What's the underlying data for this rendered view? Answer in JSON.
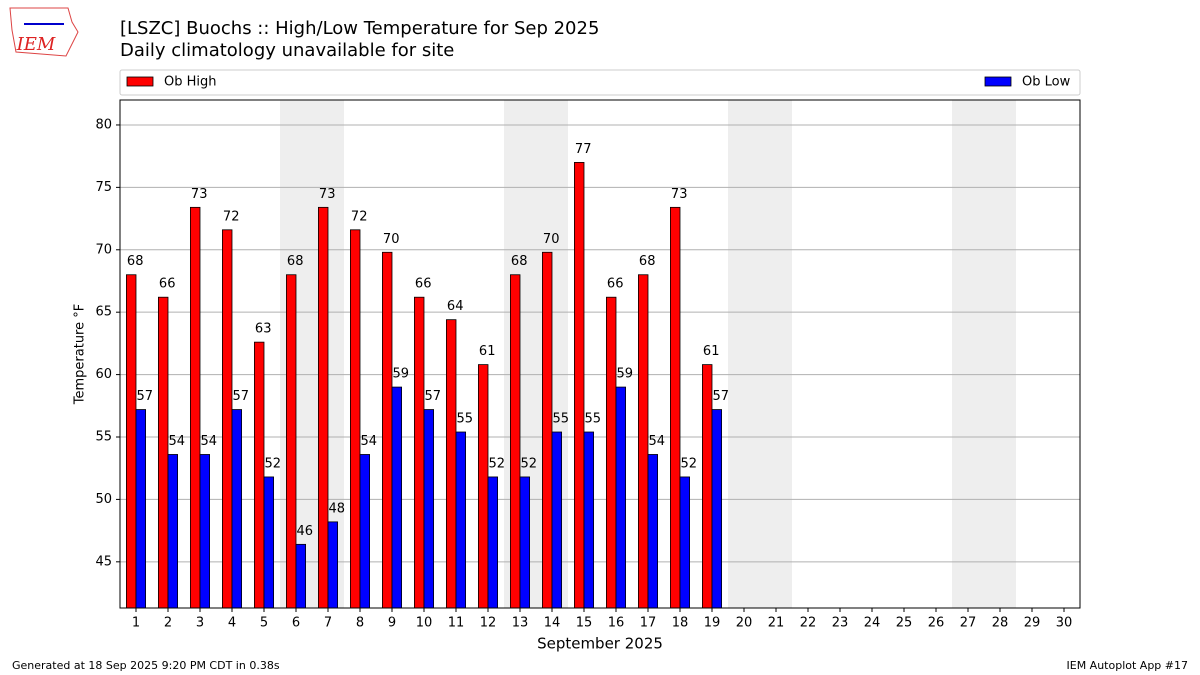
{
  "logo_text": "IEM",
  "footer_left": "Generated at 18 Sep 2025 9:20 PM CDT in 0.38s",
  "footer_right": "IEM Autoplot App #17",
  "chart_data": {
    "type": "bar",
    "title": "[LSZC] Buochs :: High/Low Temperature for Sep 2025",
    "subtitle": "Daily climatology unavailable for site",
    "xlabel": "September 2025",
    "ylabel": "Temperature °F",
    "categories": [
      "1",
      "2",
      "3",
      "4",
      "5",
      "6",
      "7",
      "8",
      "9",
      "10",
      "11",
      "12",
      "13",
      "14",
      "15",
      "16",
      "17",
      "18",
      "19",
      "20",
      "21",
      "22",
      "23",
      "24",
      "25",
      "26",
      "27",
      "28",
      "29",
      "30"
    ],
    "shaded": [
      "6",
      "7",
      "13",
      "14",
      "20",
      "21",
      "27",
      "28"
    ],
    "series": [
      {
        "name": "Ob High",
        "color": "#ff0000",
        "values": [
          68.0,
          66.2,
          73.4,
          71.6,
          62.6,
          68.0,
          73.4,
          71.6,
          69.8,
          66.2,
          64.4,
          60.8,
          68.0,
          69.8,
          77.0,
          66.2,
          68.0,
          73.4,
          60.8,
          null,
          null,
          null,
          null,
          null,
          null,
          null,
          null,
          null,
          null,
          null
        ],
        "value_labels": [
          "68",
          "66",
          "73",
          "72",
          "63",
          "68",
          "73",
          "72",
          "70",
          "66",
          "64",
          "61",
          "68",
          "70",
          "77",
          "66",
          "68",
          "73",
          "61",
          null,
          null,
          null,
          null,
          null,
          null,
          null,
          null,
          null,
          null,
          null
        ]
      },
      {
        "name": "Ob Low",
        "color": "#0000ff",
        "values": [
          57.2,
          53.6,
          53.6,
          57.2,
          51.8,
          46.4,
          48.2,
          53.6,
          59.0,
          57.2,
          55.4,
          51.8,
          51.8,
          55.4,
          55.4,
          59.0,
          53.6,
          51.8,
          57.2,
          null,
          null,
          null,
          null,
          null,
          null,
          null,
          null,
          null,
          null,
          null
        ],
        "value_labels": [
          "57",
          "54",
          "54",
          "57",
          "52",
          "46",
          "48",
          "54",
          "59",
          "57",
          "55",
          "52",
          "52",
          "55",
          "55",
          "59",
          "54",
          "52",
          "57",
          null,
          null,
          null,
          null,
          null,
          null,
          null,
          null,
          null,
          null,
          null
        ]
      }
    ],
    "ylim": [
      41.3,
      82.0
    ],
    "yticks": [
      45,
      50,
      55,
      60,
      65,
      70,
      75,
      80
    ],
    "grid": true
  }
}
